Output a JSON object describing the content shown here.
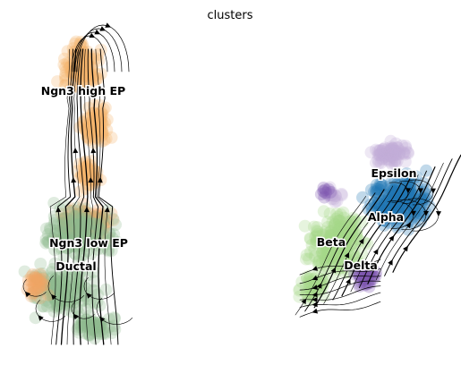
{
  "chart_data": {
    "type": "scatter",
    "title": "clusters",
    "xlabel": "",
    "ylabel": "",
    "axes_visible": false,
    "grid": false,
    "legend": "on data",
    "overlay": "velocity streamlines with arrowheads",
    "clusters": [
      {
        "name": "Ngn3 high EP",
        "color": "#f6b26b"
      },
      {
        "name": "Ngn3 low EP",
        "color": "#f2a766"
      },
      {
        "name": "Ductal",
        "color": "#8fbc8f"
      },
      {
        "name": "Epsilon",
        "color": "#c2abd6"
      },
      {
        "name": "Alpha",
        "color": "#1f77b4"
      },
      {
        "name": "Beta",
        "color": "#a6d88a"
      },
      {
        "name": "Delta",
        "color": "#7e57b0"
      }
    ]
  }
}
